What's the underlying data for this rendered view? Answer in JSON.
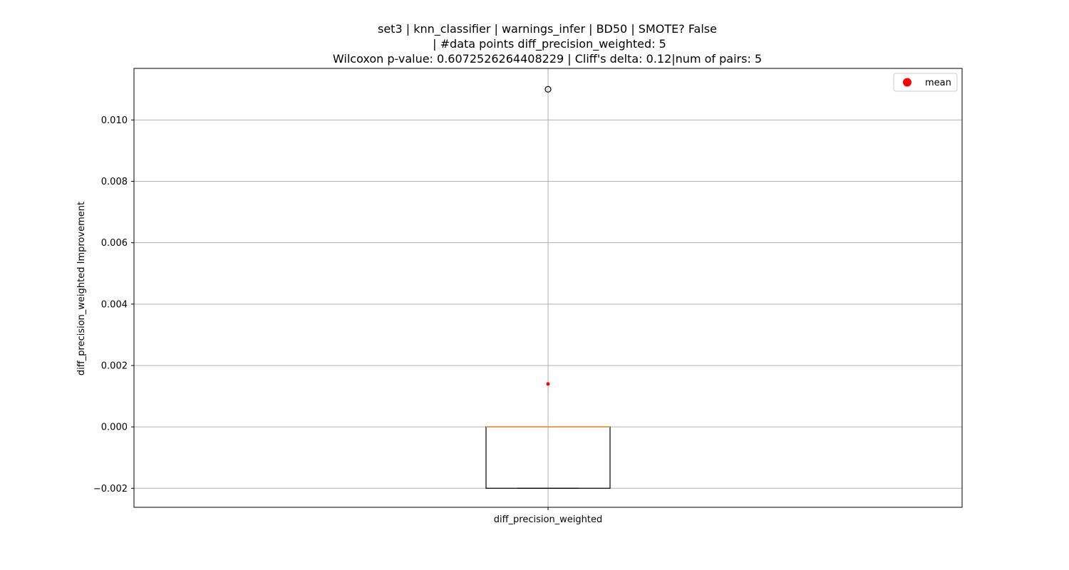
{
  "chart_data": {
    "type": "box",
    "title_lines": [
      "set3 | knn_classifier | warnings_infer | BD50 | SMOTE? False",
      "| #data points diff_precision_weighted: 5",
      "Wilcoxon p-value: 0.6072526264408229 | Cliff's delta: 0.12|num of pairs: 5"
    ],
    "xlabel": "",
    "ylabel": "diff_precision_weighted Improvement",
    "categories": [
      "diff_precision_weighted"
    ],
    "ylim": [
      -0.00262,
      0.01168
    ],
    "yticks": [
      -0.002,
      0.0,
      0.002,
      0.004,
      0.006,
      0.008,
      0.01
    ],
    "ytick_labels": [
      "−0.002",
      "0.000",
      "0.002",
      "0.004",
      "0.006",
      "0.008",
      "0.010"
    ],
    "grid": true,
    "legend": {
      "position": "top-right",
      "entries": [
        {
          "label": "mean",
          "color": "#ff0000",
          "marker": "circle"
        }
      ]
    },
    "boxes": [
      {
        "category": "diff_precision_weighted",
        "whisker_low": -0.002,
        "q1": -0.002,
        "median": 0.0,
        "q3": 0.0,
        "whisker_high": 0.0,
        "mean": 0.0014,
        "outliers": [
          0.011
        ]
      }
    ],
    "colors": {
      "box": "#000000",
      "median": "#e8913a",
      "mean": "#ff0000",
      "grid": "#b0b0b0",
      "outlier": "#000000"
    }
  }
}
